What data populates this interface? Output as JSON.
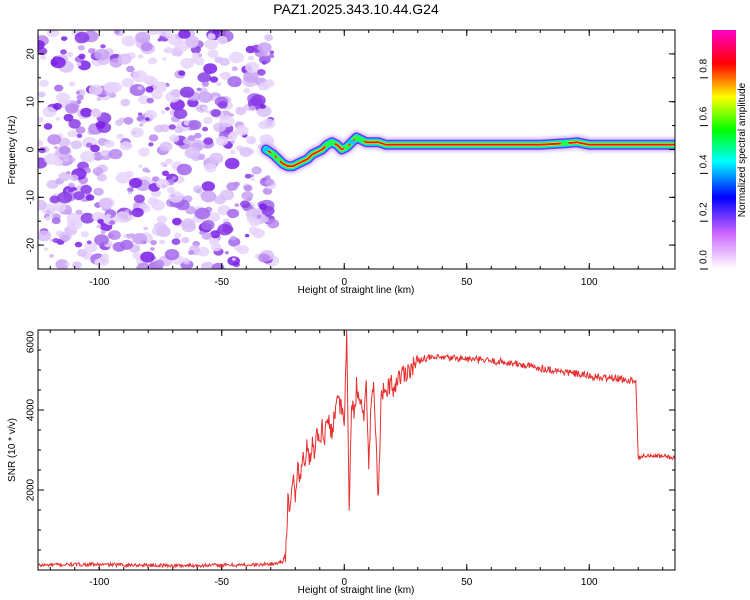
{
  "title": "PAZ1.2025.343.10.44.G24",
  "chart_data": [
    {
      "type": "heatmap",
      "title": "PAZ1.2025.343.10.44.G24",
      "xlabel": "Height of straight line (km)",
      "ylabel": "Frequency (Hz)",
      "xlim": [
        -125,
        135
      ],
      "ylim": [
        -25,
        25
      ],
      "xticks": [
        -100,
        -50,
        0,
        50,
        100
      ],
      "xtick_labels": [
        "-100",
        "-50",
        "0",
        "50",
        "100"
      ],
      "yticks": [
        -20,
        -10,
        0,
        10,
        20
      ],
      "ytick_labels": [
        "-20",
        "-10",
        "0",
        "10",
        "20"
      ],
      "noise_region_x": [
        -125,
        -31
      ],
      "signal_track": {
        "x": [
          -32,
          -29,
          -27,
          -25,
          -23,
          -21,
          -19,
          -17,
          -15,
          -13,
          -11,
          -9,
          -7,
          -5,
          -3,
          -1,
          1,
          3,
          5,
          7,
          9,
          11,
          14,
          17,
          20,
          24,
          30,
          40,
          50,
          60,
          70,
          80,
          90,
          95,
          100,
          110,
          120,
          128,
          135
        ],
        "y": [
          0.0,
          -1.0,
          -2.0,
          -3.0,
          -3.5,
          -3.5,
          -3.0,
          -2.5,
          -2.0,
          -1.0,
          -0.5,
          0.0,
          1.0,
          1.5,
          1.0,
          0.0,
          0.5,
          1.5,
          2.5,
          2.0,
          1.5,
          1.5,
          1.5,
          1.0,
          1.0,
          1.0,
          1.0,
          1.0,
          1.0,
          1.0,
          1.0,
          1.0,
          1.3,
          1.5,
          1.0,
          1.0,
          1.0,
          1.0,
          1.0
        ],
        "amplitude": [
          0.3,
          0.6,
          0.7,
          0.9,
          0.9,
          1.0,
          1.0,
          1.0,
          1.0,
          1.0,
          1.0,
          1.0,
          0.6,
          0.6,
          0.9,
          0.9,
          0.6,
          0.5,
          0.6,
          0.7,
          0.8,
          0.9,
          0.9,
          0.9,
          1.0,
          1.0,
          1.0,
          1.0,
          1.0,
          1.0,
          1.0,
          0.9,
          0.7,
          0.8,
          1.0,
          1.0,
          1.0,
          0.9,
          0.9
        ]
      },
      "colorbar": {
        "label": "Normalized spectral amplitude",
        "range": [
          0,
          1
        ],
        "ticks": [
          0.0,
          0.2,
          0.4,
          0.6,
          0.8
        ],
        "tick_labels": [
          "0.0",
          "0.2",
          "0.4",
          "0.6",
          "0.8"
        ],
        "colors": [
          "#ffffff",
          "#cc66ff",
          "#0000ff",
          "#00ffff",
          "#00ff00",
          "#ffff00",
          "#ff0000",
          "#ff00cc"
        ]
      }
    },
    {
      "type": "line",
      "xlabel": "Height of straight line (km)",
      "ylabel": "SNR (10 * v/v)",
      "xlim": [
        -125,
        135
      ],
      "ylim": [
        0,
        6000
      ],
      "xticks": [
        -100,
        -50,
        0,
        50,
        100
      ],
      "xtick_labels": [
        "-100",
        "-50",
        "0",
        "50",
        "100"
      ],
      "yticks": [
        2000,
        4000,
        6000
      ],
      "ytick_labels": [
        "2000",
        "4000",
        "6000"
      ],
      "series": [
        {
          "name": "SNR",
          "color": "#e83030",
          "x": [
            -125,
            -110,
            -90,
            -70,
            -50,
            -35,
            -28,
            -25,
            -24,
            -23,
            -22,
            -21,
            -20,
            -19,
            -18,
            -17,
            -16,
            -15,
            -14,
            -13,
            -12,
            -11,
            -10,
            -9,
            -8,
            -7,
            -6,
            -5,
            -4,
            -3,
            -2,
            -1,
            0,
            1,
            2,
            3,
            4,
            5,
            6,
            7,
            8,
            9,
            10,
            11,
            12,
            13,
            14,
            15,
            16,
            17,
            18,
            19,
            20,
            22,
            24,
            26,
            28,
            30,
            32,
            34,
            38,
            45,
            55,
            65,
            75,
            85,
            95,
            100,
            105,
            110,
            115,
            119,
            120,
            122,
            125,
            130,
            135
          ],
          "y": [
            120,
            140,
            130,
            110,
            120,
            130,
            160,
            220,
            450,
            1700,
            1400,
            2300,
            1900,
            2600,
            2200,
            2900,
            2500,
            3200,
            2700,
            3300,
            2900,
            3500,
            3100,
            3700,
            3300,
            3800,
            3600,
            3500,
            3900,
            4400,
            4100,
            4000,
            3600,
            6000,
            1500,
            4300,
            3700,
            4600,
            4100,
            4400,
            3900,
            4500,
            2600,
            4300,
            4600,
            3100,
            1800,
            4200,
            4500,
            4300,
            4600,
            4700,
            4500,
            4800,
            4900,
            5000,
            5100,
            5200,
            5300,
            5300,
            5300,
            5300,
            5250,
            5200,
            5100,
            5000,
            4900,
            4850,
            4800,
            4800,
            4750,
            4750,
            2800,
            2850,
            2850,
            2850,
            2800
          ]
        }
      ]
    }
  ]
}
